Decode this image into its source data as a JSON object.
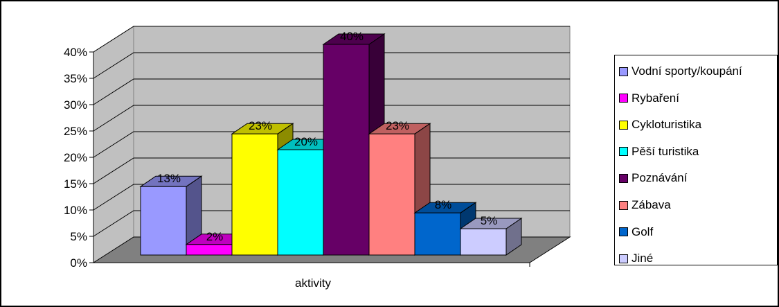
{
  "chart_data": {
    "type": "bar",
    "xlabel": "aktivity",
    "ylabel": "",
    "title": "",
    "ylim": [
      0,
      40
    ],
    "yticks": [
      "0%",
      "5%",
      "10%",
      "15%",
      "20%",
      "25%",
      "30%",
      "35%",
      "40%"
    ],
    "grid": true,
    "legend_position": "right",
    "series": [
      {
        "name": "Vodní sporty/koupání",
        "value": 13,
        "label": "13%",
        "color": "#9999FF"
      },
      {
        "name": "Rybaření",
        "value": 2,
        "label": "2%",
        "color": "#FF00FF"
      },
      {
        "name": "Cykloturistika",
        "value": 23,
        "label": "23%",
        "color": "#FFFF00"
      },
      {
        "name": "Pěší turistika",
        "value": 20,
        "label": "20%",
        "color": "#00FFFF"
      },
      {
        "name": "Poznávání",
        "value": 40,
        "label": "40%",
        "color": "#660066"
      },
      {
        "name": "Zábava",
        "value": 23,
        "label": "23%",
        "color": "#FF8080"
      },
      {
        "name": "Golf",
        "value": 8,
        "label": "8%",
        "color": "#0066CC"
      },
      {
        "name": "Jiné",
        "value": 5,
        "label": "5%",
        "color": "#CCCCFF"
      }
    ]
  }
}
